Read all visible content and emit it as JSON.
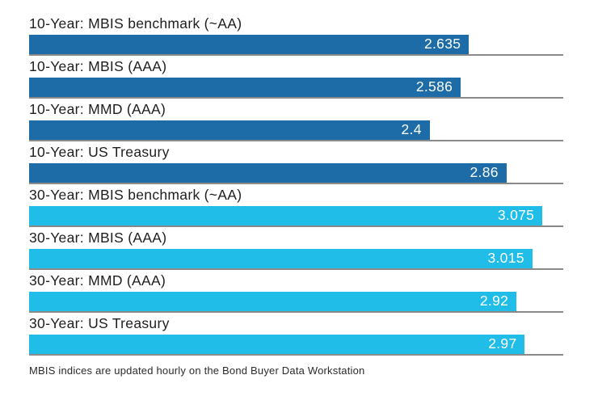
{
  "chart_data": {
    "type": "bar",
    "orientation": "horizontal",
    "title": "",
    "xlabel": "",
    "ylabel": "",
    "xlim": [
      0,
      3.2
    ],
    "grid": "per-row baseline under each bar",
    "legend": "none",
    "categories": [
      "10-Year: MBIS benchmark (~AA)",
      "10-Year: MBIS (AAA)",
      "10-Year: MMD (AAA)",
      "10-Year: US Treasury",
      "30-Year: MBIS benchmark (~AA)",
      "30-Year: MBIS (AAA)",
      "30-Year: MMD (AAA)",
      "30-Year: US Treasury"
    ],
    "values": [
      2.635,
      2.586,
      2.4,
      2.86,
      3.075,
      3.015,
      2.92,
      2.97
    ],
    "rows": [
      {
        "label": "10-Year: MBIS benchmark (~AA)",
        "value": 2.635,
        "value_label": "2.635",
        "group": "ten_year"
      },
      {
        "label": "10-Year: MBIS (AAA)",
        "value": 2.586,
        "value_label": "2.586",
        "group": "ten_year"
      },
      {
        "label": "10-Year: MMD (AAA)",
        "value": 2.4,
        "value_label": "2.4",
        "group": "ten_year"
      },
      {
        "label": "10-Year: US Treasury",
        "value": 2.86,
        "value_label": "2.86",
        "group": "ten_year"
      },
      {
        "label": "30-Year: MBIS benchmark (~AA)",
        "value": 3.075,
        "value_label": "3.075",
        "group": "thirty_year"
      },
      {
        "label": "30-Year: MBIS (AAA)",
        "value": 3.015,
        "value_label": "3.015",
        "group": "thirty_year"
      },
      {
        "label": "30-Year: MMD (AAA)",
        "value": 2.92,
        "value_label": "2.92",
        "group": "thirty_year"
      },
      {
        "label": "30-Year: US Treasury",
        "value": 2.97,
        "value_label": "2.97",
        "group": "thirty_year"
      }
    ],
    "colors": {
      "ten_year": "#1d6ca7",
      "thirty_year": "#20bde9",
      "gridline": "#8a8a8a",
      "label_text": "#1e1e1e",
      "value_text": "#ffffff",
      "footer_text": "#2b2b2b"
    },
    "footnote": "MBIS indices are updated hourly on the Bond Buyer Data Workstation"
  }
}
